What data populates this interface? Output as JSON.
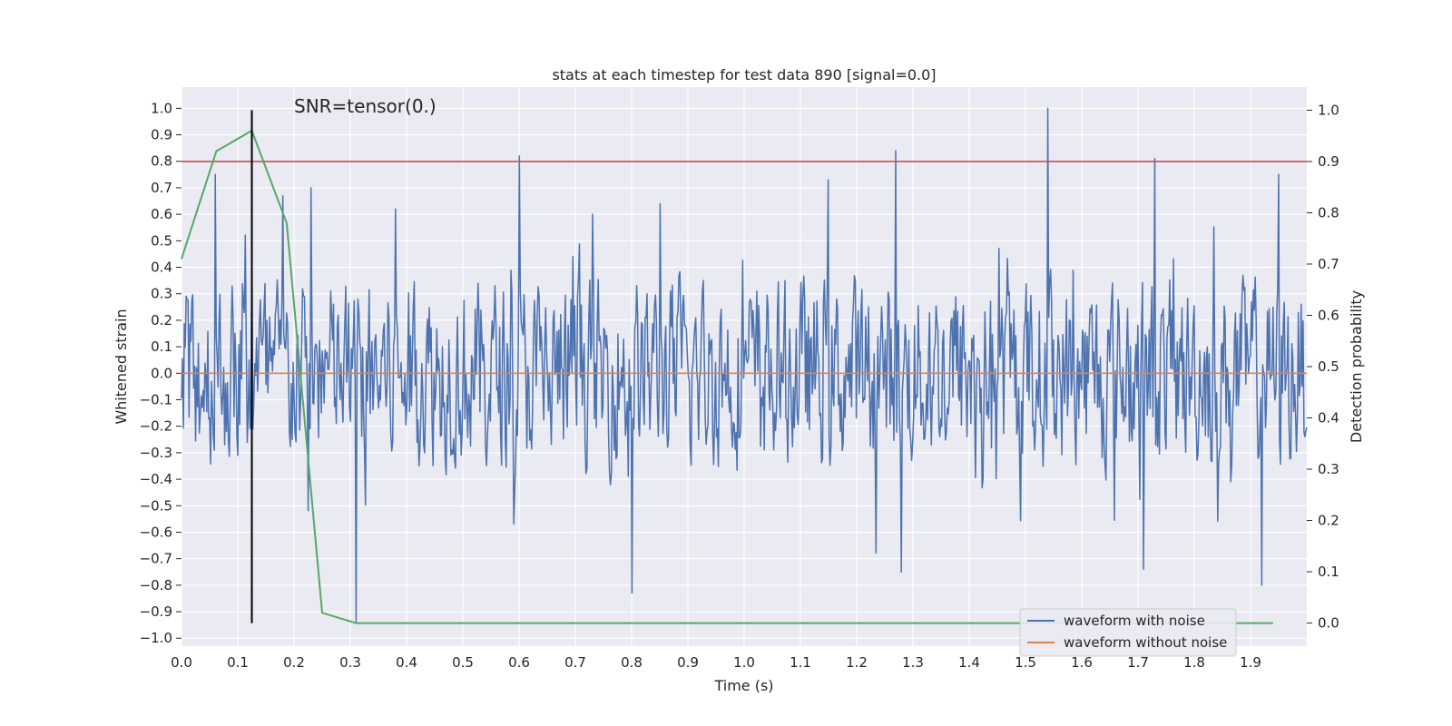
{
  "chart_data": {
    "type": "line",
    "title": "stats at each timestep for test data 890 [signal=0.0]",
    "xlabel": "Time (s)",
    "ylabel_left": "Whitened strain",
    "ylabel_right": "Detection probability",
    "annotation": "SNR=tensor(0.)",
    "xlim": [
      0.0,
      2.0
    ],
    "ylim_left": [
      -1.03,
      1.08
    ],
    "ylim_right": [
      -0.045,
      1.045
    ],
    "x_ticks": [
      0.0,
      0.1,
      0.2,
      0.3,
      0.4,
      0.5,
      0.6,
      0.7,
      0.8,
      0.9,
      1.0,
      1.1,
      1.2,
      1.3,
      1.4,
      1.5,
      1.6,
      1.7,
      1.8,
      1.9
    ],
    "x_tick_labels": [
      "0.0",
      "0.1",
      "0.2",
      "0.3",
      "0.4",
      "0.5",
      "0.6",
      "0.7",
      "0.8",
      "0.9",
      "1.0",
      "1.1",
      "1.2",
      "1.3",
      "1.4",
      "1.5",
      "1.6",
      "1.7",
      "1.8",
      "1.9"
    ],
    "y_left_ticks": [
      1.0,
      0.9,
      0.8,
      0.7,
      0.6,
      0.5,
      0.4,
      0.3,
      0.2,
      0.1,
      0.0,
      -0.1,
      -0.2,
      -0.3,
      -0.4,
      -0.5,
      -0.6,
      -0.7,
      -0.8,
      -0.9,
      -1.0
    ],
    "y_left_tick_labels": [
      "1.0",
      "0.9",
      "0.8",
      "0.7",
      "0.6",
      "0.5",
      "0.4",
      "0.3",
      "0.2",
      "0.1",
      "0.0",
      "−0.1",
      "−0.2",
      "−0.3",
      "−0.4",
      "−0.5",
      "−0.6",
      "−0.7",
      "−0.8",
      "−0.9",
      "−1.0"
    ],
    "y_right_ticks": [
      1.0,
      0.9,
      0.8,
      0.7,
      0.6,
      0.5,
      0.4,
      0.3,
      0.2,
      0.1,
      0.0
    ],
    "y_right_tick_labels": [
      "1.0",
      "0.9",
      "0.8",
      "0.7",
      "0.6",
      "0.5",
      "0.4",
      "0.3",
      "0.2",
      "0.1",
      "0.0"
    ],
    "threshold_line": {
      "axis": "right",
      "value": 0.9,
      "color": "#c44e52"
    },
    "vertical_marker": {
      "x": 0.125,
      "y_range_right": [
        0.0,
        1.0
      ],
      "color": "#000000"
    },
    "noisy_waveform": {
      "name": "waveform with noise",
      "color": "#4c72b0",
      "x_range": [
        0.0,
        2.0
      ],
      "num_points": 1200,
      "typical_amplitude": 0.3,
      "peak_values": [
        [
          0.06,
          0.75
        ],
        [
          0.125,
          0.47
        ],
        [
          0.18,
          0.67
        ],
        [
          0.23,
          0.7
        ],
        [
          0.31,
          -0.94
        ],
        [
          0.38,
          0.62
        ],
        [
          0.6,
          0.82
        ],
        [
          0.73,
          0.6
        ],
        [
          0.8,
          -0.83
        ],
        [
          0.85,
          0.64
        ],
        [
          1.15,
          0.73
        ],
        [
          1.27,
          0.84
        ],
        [
          1.28,
          -0.75
        ],
        [
          1.54,
          1.0
        ],
        [
          1.73,
          0.81
        ],
        [
          1.71,
          -0.74
        ],
        [
          1.92,
          -0.8
        ],
        [
          1.95,
          0.75
        ]
      ]
    },
    "clean_waveform": {
      "name": "waveform without noise",
      "color": "#dd8452",
      "value": 0.0
    },
    "detection_probability": {
      "name": "detection probability",
      "color": "#55a868",
      "axis": "right",
      "x": [
        0.0,
        0.062,
        0.125,
        0.187,
        0.25,
        0.31,
        0.5,
        1.0,
        1.5,
        1.94
      ],
      "values": [
        0.71,
        0.92,
        0.96,
        0.78,
        0.02,
        0.0,
        0.0,
        0.0,
        0.0,
        0.0
      ]
    },
    "legend": {
      "position": "lower right",
      "entries": [
        {
          "label": "waveform with noise",
          "color": "#4c72b0"
        },
        {
          "label": "waveform without noise",
          "color": "#dd8452"
        }
      ]
    },
    "style": {
      "background": "#eaeaf2",
      "grid_color": "#ffffff"
    }
  }
}
